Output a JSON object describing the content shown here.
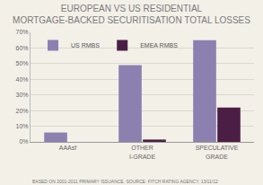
{
  "chart_data": {
    "type": "bar",
    "title": "EUROPEAN VS US RESIDENTIAL MORTGAGE-BACKED SECURITISATION TOTAL LOSSES",
    "categories": [
      "AAAsf",
      "OTHER I-GRADE",
      "SPECULATIVE GRADE"
    ],
    "series": [
      {
        "name": "US RMBS",
        "color": "#8b80b0",
        "values": [
          6,
          49,
          65
        ]
      },
      {
        "name": "EMEA RMBS",
        "color": "#4b1f45",
        "values": [
          0,
          1.5,
          22
        ]
      }
    ],
    "ylim": [
      0,
      70
    ],
    "yticks": [
      {
        "value": 0,
        "label": "0%"
      },
      {
        "value": 10,
        "label": "10%"
      },
      {
        "value": 20,
        "label": "20%"
      },
      {
        "value": 30,
        "label": "30%"
      },
      {
        "value": 40,
        "label": "40%"
      },
      {
        "value": 50,
        "label": "50%"
      },
      {
        "value": 60,
        "label": "60%"
      },
      {
        "value": 70,
        "label": "70%"
      }
    ],
    "grid": true,
    "legend": "top-left",
    "footnote": "BASED ON 2001-2011 PRIMARY ISSUANCE. SOURCE: FITCH RATING AGENCY, 13/11/12"
  }
}
